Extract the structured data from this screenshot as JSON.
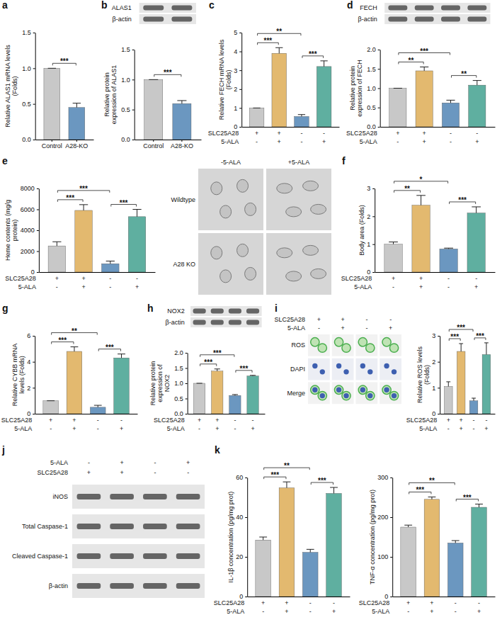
{
  "chart_data": [
    {
      "panel": "a",
      "type": "bar",
      "y_label": "Relative ALAS1 mRNA levels (Folds)",
      "categories": [
        "Control",
        "A28-KO"
      ],
      "values": [
        1.0,
        0.45
      ],
      "errors": [
        0,
        0.06
      ],
      "colors": [
        "#c8c8c8",
        "#6b97c0"
      ],
      "ylim": [
        0,
        1.5
      ],
      "yticks": [
        {
          "value": 0,
          "label": "0.0"
        },
        0.5,
        {
          "value": 1,
          "label": "1.0"
        },
        1.5
      ],
      "annotations": [
        {
          "pair": [
            0,
            1
          ],
          "text": "***"
        }
      ]
    },
    {
      "panel": "b",
      "type": "bar",
      "y_label": "Relative protein expression of ALAS1",
      "categories": [
        "Control",
        "A28-KO"
      ],
      "values": [
        1.0,
        0.6
      ],
      "errors": [
        0,
        0.05
      ],
      "colors": [
        "#c8c8c8",
        "#6b97c0"
      ],
      "ylim": [
        0,
        1.5
      ],
      "yticks": [
        {
          "value": 0,
          "label": "0.0"
        },
        0.5,
        {
          "value": 1,
          "label": "1.0"
        },
        1.5
      ],
      "annotations": [
        {
          "pair": [
            0,
            1
          ],
          "text": "***"
        }
      ]
    },
    {
      "panel": "c",
      "type": "bar",
      "y_label": "Relative FECH mRNA levels (Folds)",
      "categories": [
        null,
        null,
        null,
        null
      ],
      "values": [
        1.0,
        3.9,
        0.55,
        3.2
      ],
      "errors": [
        0,
        0.3,
        0.1,
        0.3
      ],
      "colors": [
        "#c8c8c8",
        "#e3b96f",
        "#6b97c0",
        "#5fafa0"
      ],
      "ylim": [
        0,
        5
      ],
      "yticks": [
        0,
        1,
        2,
        3,
        4,
        5
      ],
      "conditions": [
        {
          "name": "SLC25A28",
          "values": [
            "+",
            "+",
            "-",
            "-"
          ]
        },
        {
          "name": "5-ALA",
          "values": [
            "-",
            "+",
            "-",
            "+"
          ]
        }
      ],
      "annotations": [
        {
          "pair": [
            0,
            1
          ],
          "text": "***"
        },
        {
          "pair": [
            0,
            2
          ],
          "text": "**"
        },
        {
          "pair": [
            2,
            3
          ],
          "text": "***"
        }
      ]
    },
    {
      "panel": "d",
      "type": "bar",
      "y_label": "Relative protein expression of FECH",
      "categories": [
        null,
        null,
        null,
        null
      ],
      "values": [
        1.0,
        1.45,
        0.62,
        1.08
      ],
      "errors": [
        0,
        0.1,
        0.07,
        0.12
      ],
      "colors": [
        "#c8c8c8",
        "#e3b96f",
        "#6b97c0",
        "#5fafa0"
      ],
      "ylim": [
        0,
        2
      ],
      "yticks": [
        {
          "value": 0,
          "label": "0.0"
        },
        0.5,
        {
          "value": 1,
          "label": "1.0"
        },
        1.5,
        {
          "value": 2,
          "label": "2.0"
        }
      ],
      "conditions": [
        {
          "name": "SLC25A28",
          "values": [
            "+",
            "+",
            "-",
            "-"
          ]
        },
        {
          "name": "5-ALA",
          "values": [
            "-",
            "+",
            "-",
            "+"
          ]
        }
      ],
      "annotations": [
        {
          "pair": [
            0,
            1
          ],
          "text": "**"
        },
        {
          "pair": [
            0,
            2
          ],
          "text": "***"
        },
        {
          "pair": [
            2,
            3
          ],
          "text": "**"
        }
      ]
    },
    {
      "panel": "e",
      "type": "bar",
      "y_label": "Heme contents (mg/g protein)",
      "categories": [
        null,
        null,
        null,
        null
      ],
      "values": [
        2500,
        5900,
        800,
        5300
      ],
      "errors": [
        400,
        550,
        250,
        700
      ],
      "colors": [
        "#c8c8c8",
        "#e3b96f",
        "#6b97c0",
        "#5fafa0"
      ],
      "ylim": [
        0,
        8000
      ],
      "yticks": [
        0,
        2000,
        4000,
        6000,
        8000
      ],
      "conditions": [
        {
          "name": "SLC25A28",
          "values": [
            "+",
            "+",
            "-",
            "-"
          ]
        },
        {
          "name": "5-ALA",
          "values": [
            "-",
            "+",
            "-",
            "+"
          ]
        }
      ],
      "annotations": [
        {
          "pair": [
            0,
            1
          ],
          "text": "***"
        },
        {
          "pair": [
            0,
            2
          ],
          "text": "***"
        },
        {
          "pair": [
            2,
            3
          ],
          "text": "***"
        }
      ]
    },
    {
      "panel": "f",
      "type": "bar",
      "y_label": "Body area (Folds)",
      "categories": [
        null,
        null,
        null,
        null
      ],
      "values": [
        1.0,
        2.4,
        0.83,
        2.12
      ],
      "errors": [
        0.08,
        0.35,
        0.03,
        0.22
      ],
      "colors": [
        "#c8c8c8",
        "#e3b96f",
        "#6b97c0",
        "#5fafa0"
      ],
      "ylim": [
        0,
        3
      ],
      "yticks": [
        0,
        1,
        2,
        3
      ],
      "conditions": [
        {
          "name": "SLC25A28",
          "values": [
            "+",
            "+",
            "-",
            "-"
          ]
        },
        {
          "name": "5-ALA",
          "values": [
            "-",
            "+",
            "-",
            "+"
          ]
        }
      ],
      "annotations": [
        {
          "pair": [
            0,
            1
          ],
          "text": "**"
        },
        {
          "pair": [
            0,
            2
          ],
          "text": "*"
        },
        {
          "pair": [
            2,
            3
          ],
          "text": "***"
        }
      ]
    },
    {
      "panel": "g",
      "type": "bar",
      "y_label": "Relative CYBB mRNA levels (Folds)",
      "categories": [
        null,
        null,
        null,
        null
      ],
      "values": [
        1.0,
        4.8,
        0.5,
        4.3
      ],
      "errors": [
        0,
        0.35,
        0.15,
        0.3
      ],
      "colors": [
        "#c8c8c8",
        "#e3b96f",
        "#6b97c0",
        "#5fafa0"
      ],
      "ylim": [
        0,
        6
      ],
      "yticks": [
        0,
        2,
        4,
        6
      ],
      "conditions": [
        {
          "name": "SLC25A28",
          "values": [
            "+",
            "+",
            "-",
            "-"
          ]
        },
        {
          "name": "5-ALA",
          "values": [
            "-",
            "+",
            "-",
            "+"
          ]
        }
      ],
      "annotations": [
        {
          "pair": [
            0,
            1
          ],
          "text": "***"
        },
        {
          "pair": [
            0,
            2
          ],
          "text": "**"
        },
        {
          "pair": [
            2,
            3
          ],
          "text": "***"
        }
      ]
    },
    {
      "panel": "h",
      "type": "bar",
      "y_label": "Relative protein expression of NOX2",
      "categories": [
        null,
        null,
        null,
        null
      ],
      "values": [
        1.0,
        1.4,
        0.6,
        1.24
      ],
      "errors": [
        0,
        0.07,
        0.03,
        0.02
      ],
      "colors": [
        "#c8c8c8",
        "#e3b96f",
        "#6b97c0",
        "#5fafa0"
      ],
      "ylim": [
        0,
        2
      ],
      "yticks": [
        {
          "value": 0,
          "label": "0.0"
        },
        0.5,
        {
          "value": 1,
          "label": "1.0"
        },
        1.5,
        {
          "value": 2,
          "label": "2.0"
        }
      ],
      "conditions": [
        {
          "name": "SLC25A28",
          "values": [
            "+",
            "+",
            "-",
            "-"
          ]
        },
        {
          "name": "5-ALA",
          "values": [
            "-",
            "+",
            "-",
            "+"
          ]
        }
      ],
      "annotations": [
        {
          "pair": [
            0,
            1
          ],
          "text": "***"
        },
        {
          "pair": [
            0,
            2
          ],
          "text": "***"
        },
        {
          "pair": [
            2,
            3
          ],
          "text": "***"
        }
      ]
    },
    {
      "type": "bar",
      "y_label": "Relative ROS levels (Folds)",
      "categories": [
        null,
        null,
        null,
        null
      ],
      "values": [
        1.05,
        2.4,
        0.5,
        2.28
      ],
      "errors": [
        0.18,
        0.3,
        0.1,
        0.45
      ],
      "colors": [
        "#c8c8c8",
        "#e3b96f",
        "#6b97c0",
        "#5fafa0"
      ],
      "ylim": [
        0,
        3
      ],
      "yticks": [
        0,
        1,
        2,
        3
      ],
      "conditions": [
        {
          "name": "SLC25A28",
          "values": [
            "+",
            "+",
            "-",
            "-"
          ]
        },
        {
          "name": "5-ALA",
          "values": [
            "-",
            "+",
            "-",
            "+"
          ]
        }
      ],
      "annotations": [
        {
          "pair": [
            0,
            1
          ],
          "text": "***"
        },
        {
          "pair": [
            0,
            2
          ],
          "text": "***"
        },
        {
          "pair": [
            2,
            3
          ],
          "text": "***"
        }
      ]
    },
    {
      "panel": "k",
      "type": "bar",
      "y_label": "IL-1β concentration (pg/mg prot)",
      "categories": [
        null,
        null,
        null,
        null
      ],
      "values": [
        28.5,
        54.8,
        22.3,
        52
      ],
      "errors": [
        1.5,
        3,
        1.5,
        3
      ],
      "colors": [
        "#c8c8c8",
        "#e3b96f",
        "#6b97c0",
        "#5fafa0"
      ],
      "ylim": [
        0,
        60
      ],
      "yticks": [
        0,
        20,
        40,
        60
      ],
      "conditions": [
        {
          "name": "SLC25A28",
          "values": [
            "+",
            "+",
            "-",
            "-"
          ]
        },
        {
          "name": "5-ALA",
          "values": [
            "-",
            "+",
            "-",
            "+"
          ]
        }
      ],
      "annotations": [
        {
          "pair": [
            0,
            1
          ],
          "text": "***"
        },
        {
          "pair": [
            0,
            2
          ],
          "text": "**"
        },
        {
          "pair": [
            2,
            3
          ],
          "text": "***"
        }
      ]
    },
    {
      "type": "bar",
      "y_label": "TNF-α concentration (pg/mg prot)",
      "categories": [
        null,
        null,
        null,
        null
      ],
      "values": [
        175,
        245,
        135,
        225
      ],
      "errors": [
        5,
        6,
        6,
        8
      ],
      "colors": [
        "#c8c8c8",
        "#e3b96f",
        "#6b97c0",
        "#5fafa0"
      ],
      "ylim": [
        0,
        300
      ],
      "yticks": [
        0,
        100,
        200,
        300
      ],
      "conditions": [
        {
          "name": "SLC25A28",
          "values": [
            "+",
            "+",
            "-",
            "-"
          ]
        },
        {
          "name": "5-ALA",
          "values": [
            "-",
            "+",
            "-",
            "+"
          ]
        }
      ],
      "annotations": [
        {
          "pair": [
            0,
            1
          ],
          "text": "***"
        },
        {
          "pair": [
            0,
            2
          ],
          "text": "**"
        },
        {
          "pair": [
            2,
            3
          ],
          "text": "***"
        }
      ]
    }
  ],
  "blots": [
    {
      "rows": [
        "ALAS1",
        "β-actin"
      ]
    },
    {
      "rows": [
        "FECH",
        "β-actin"
      ]
    },
    {
      "rows": [
        "NOX2",
        "β-actin"
      ]
    },
    {
      "panel": "j",
      "conditions": [
        {
          "name": "5-ALA",
          "values": [
            "-",
            "+",
            "-",
            "+"
          ]
        },
        {
          "name": "SLC25A28",
          "values": [
            "+",
            "+",
            "-",
            "-"
          ]
        }
      ],
      "rows": [
        "iNOS",
        "Total Caspase-1",
        "Cleaved Caspase-1",
        "β-actin"
      ]
    }
  ],
  "micrographs": [
    {
      "columns": [
        "-5-ALA",
        "+5-ALA"
      ],
      "rows": [
        "Wildtype",
        "A28 KO"
      ]
    },
    {
      "panel": "i",
      "conditions": [
        {
          "name": "SLC25A28",
          "values": [
            "+",
            "+",
            "-",
            "-"
          ]
        },
        {
          "name": "5-ALA",
          "values": [
            "-",
            "+",
            "-",
            "+"
          ]
        }
      ],
      "rows": [
        "ROS",
        "DAPI",
        "Merge"
      ]
    }
  ]
}
